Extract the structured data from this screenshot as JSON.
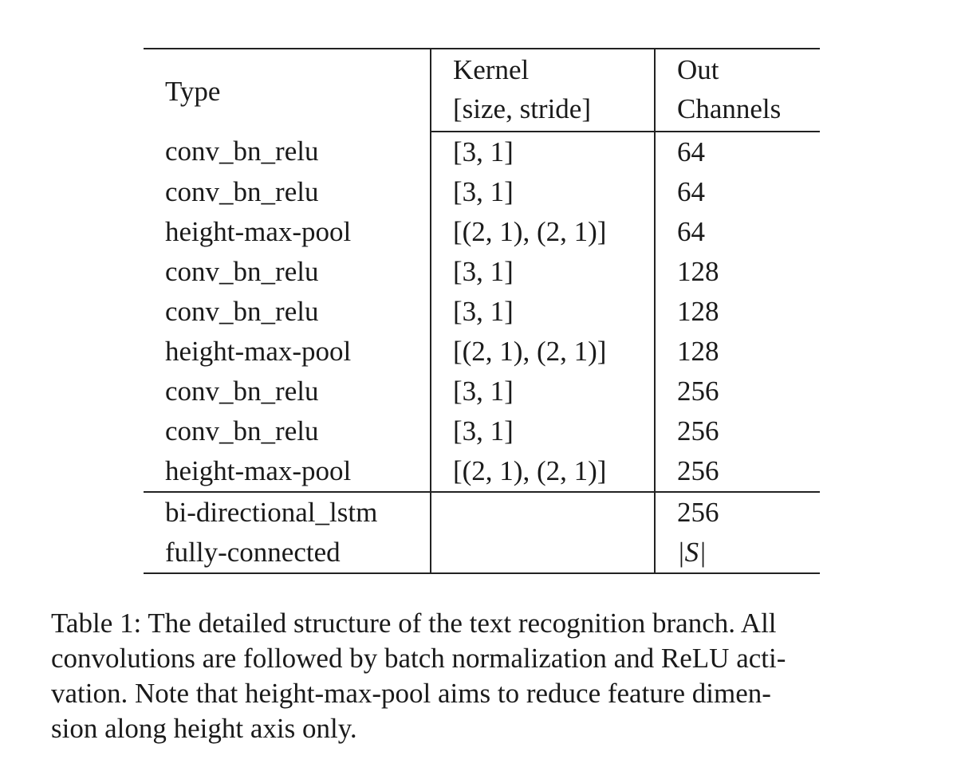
{
  "table": {
    "header": {
      "type": "Type",
      "kernel_line1": "Kernel",
      "kernel_line2": "[size, stride]",
      "out_line1": "Out",
      "out_line2": "Channels"
    },
    "rows": [
      {
        "type": "conv_bn_relu",
        "kernel": "[3, 1]",
        "out": "64"
      },
      {
        "type": "conv_bn_relu",
        "kernel": "[3, 1]",
        "out": "64"
      },
      {
        "type": "height-max-pool",
        "kernel": "[(2, 1), (2, 1)]",
        "out": "64"
      },
      {
        "type": "conv_bn_relu",
        "kernel": "[3, 1]",
        "out": "128"
      },
      {
        "type": "conv_bn_relu",
        "kernel": "[3, 1]",
        "out": "128"
      },
      {
        "type": "height-max-pool",
        "kernel": "[(2, 1), (2, 1)]",
        "out": "128"
      },
      {
        "type": "conv_bn_relu",
        "kernel": "[3, 1]",
        "out": "256"
      },
      {
        "type": "conv_bn_relu",
        "kernel": "[3, 1]",
        "out": "256"
      },
      {
        "type": "height-max-pool",
        "kernel": "[(2, 1), (2, 1)]",
        "out": "256"
      },
      {
        "type": "bi-directional_lstm",
        "kernel": "",
        "out": "256"
      },
      {
        "type": "fully-connected",
        "kernel": "",
        "out": "|S|"
      }
    ]
  },
  "caption": {
    "line1": "Table 1: The detailed structure of the text recognition branch.  All",
    "line2": "convolutions are followed by batch normalization and ReLU acti-",
    "line3": "vation.  Note that height-max-pool aims to reduce feature dimen-",
    "line4": "sion along height axis only."
  }
}
